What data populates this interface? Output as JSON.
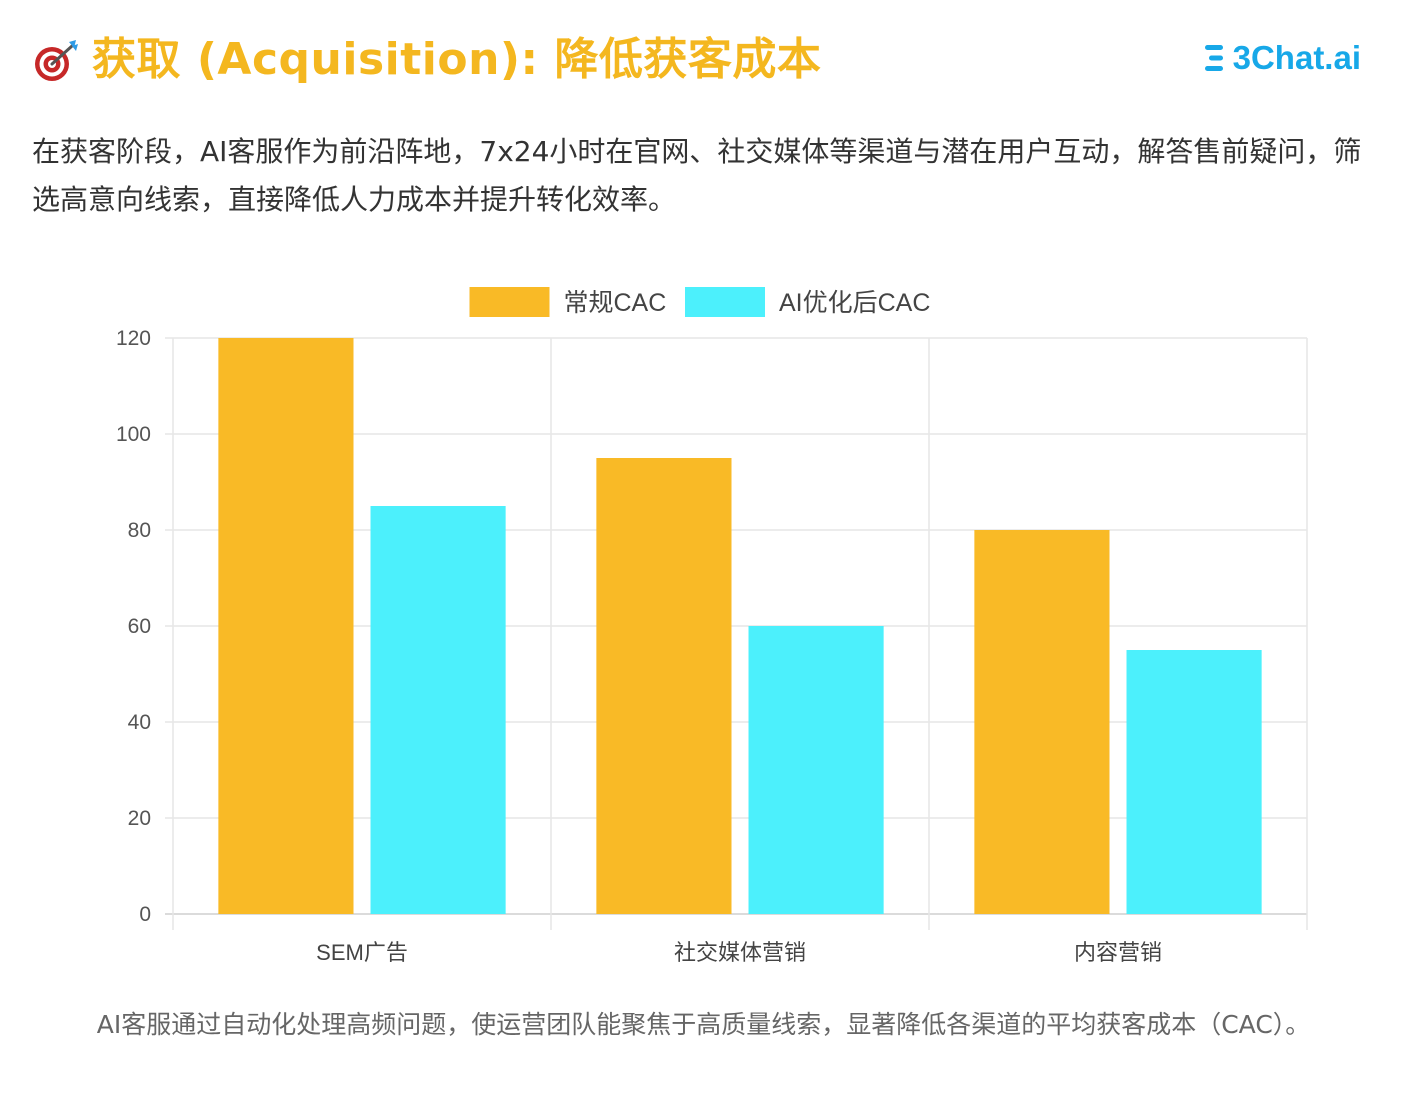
{
  "header": {
    "title": "获取 (Acquisition): 降低获客成本",
    "icon": "target-dart-icon",
    "brand": "3Chat.ai",
    "brand_icon": "three-bars-icon"
  },
  "intro": "在获客阶段，AI客服作为前沿阵地，7x24小时在官网、社交媒体等渠道与潜在用户互动，解答售前疑问，筛选高意向线索，直接降低人力成本并提升转化效率。",
  "caption": "AI客服通过自动化处理高频问题，使运营团队能聚焦于高质量线索，显著降低各渠道的平均获客成本（CAC）。",
  "colors": {
    "title": "#f4b71f",
    "regular": "#f9ba26",
    "ai": "#4cf0fc",
    "brand": "#17a8e8"
  },
  "chart_data": {
    "type": "bar",
    "categories": [
      "SEM广告",
      "社交媒体营销",
      "内容营销"
    ],
    "series": [
      {
        "name": "常规CAC",
        "values": [
          120,
          95,
          80
        ],
        "color": "#f9ba26"
      },
      {
        "name": "AI优化后CAC",
        "values": [
          85,
          60,
          55
        ],
        "color": "#4cf0fc"
      }
    ],
    "ylim": [
      0,
      120
    ],
    "yticks": [
      0,
      20,
      40,
      60,
      80,
      100,
      120
    ],
    "grid": true,
    "legend": "top-center"
  }
}
